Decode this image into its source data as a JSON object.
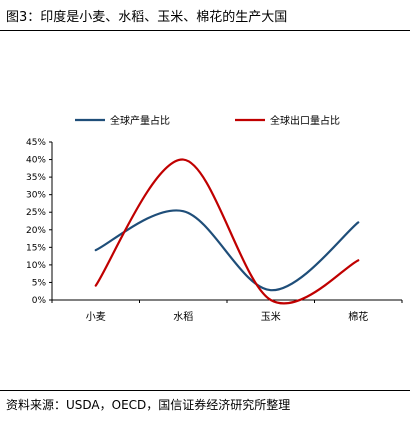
{
  "header": {
    "title": "图3：印度是小麦、水稻、玉米、棉花的生产大国"
  },
  "footer": {
    "source": "资料来源：USDA，OECD，国信证券经济研究所整理"
  },
  "chart_data": {
    "type": "line",
    "categories": [
      "小麦",
      "水稻",
      "玉米",
      "棉花"
    ],
    "series": [
      {
        "name": "全球产量占比",
        "color": "#1f4e79",
        "values": [
          14.2,
          25.3,
          2.8,
          22.1
        ]
      },
      {
        "name": "全球出口量占比",
        "color": "#c00000",
        "values": [
          4.1,
          40.0,
          0.0,
          11.3
        ]
      }
    ],
    "ylim": [
      0,
      45
    ],
    "yticks": [
      "0%",
      "5%",
      "10%",
      "15%",
      "20%",
      "25%",
      "30%",
      "35%",
      "40%",
      "45%"
    ],
    "smooth": true,
    "grid": false,
    "legend_position": "top"
  }
}
